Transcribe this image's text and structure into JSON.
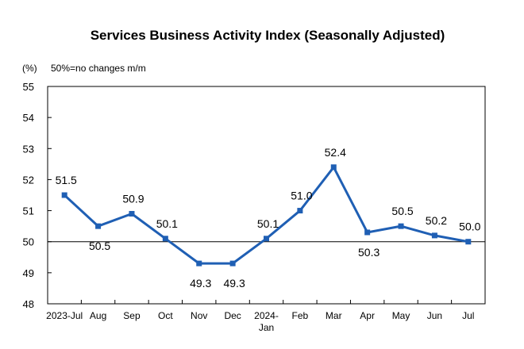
{
  "chart_data": {
    "type": "line",
    "title": "Services Business Activity Index (Seasonally Adjusted)",
    "ylabel": "(%)",
    "note": "50%=no changes m/m",
    "categories": [
      [
        "2023-Jul"
      ],
      [
        "Aug"
      ],
      [
        "Sep"
      ],
      [
        "Oct"
      ],
      [
        "Nov"
      ],
      [
        "Dec"
      ],
      [
        "2024-",
        "Jan"
      ],
      [
        "Feb"
      ],
      [
        "Mar"
      ],
      [
        "Apr"
      ],
      [
        "May"
      ],
      [
        "Jun"
      ],
      [
        "Jul"
      ]
    ],
    "series": [
      {
        "values": [
          51.5,
          50.5,
          50.9,
          50.1,
          49.3,
          49.3,
          50.1,
          51.0,
          52.4,
          50.3,
          50.5,
          50.2,
          50.0
        ],
        "labels": [
          "51.5",
          "50.5",
          "50.9",
          "50.1",
          "49.3",
          "49.3",
          "50.1",
          "51.0",
          "52.4",
          "50.3",
          "50.5",
          "50.2",
          "50.0"
        ],
        "color": "#1f5fb4"
      }
    ],
    "yticks": [
      "48",
      "49",
      "50",
      "51",
      "52",
      "53",
      "54",
      "55"
    ],
    "ylim": [
      48,
      55
    ],
    "reference_line": 50,
    "grid": false,
    "legend": "none"
  }
}
